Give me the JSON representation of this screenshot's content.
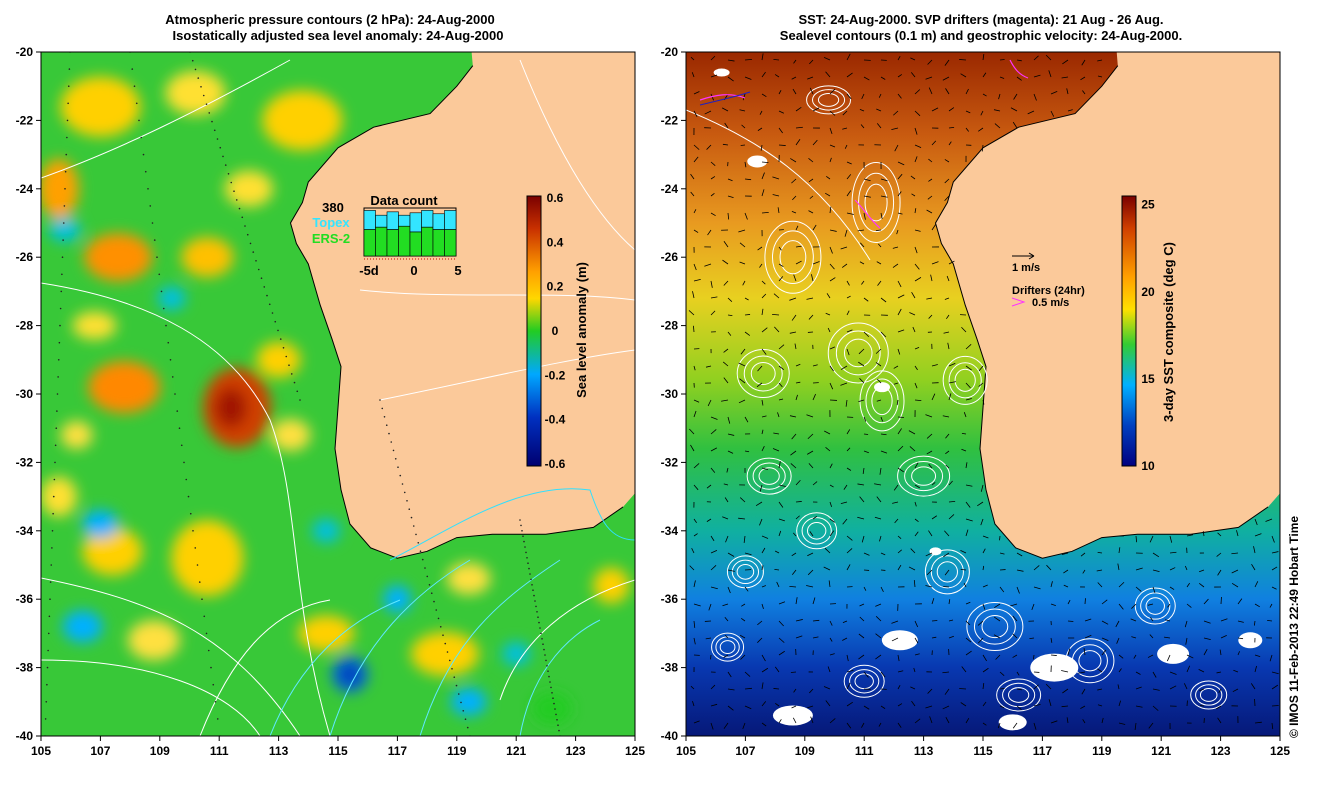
{
  "left_panel": {
    "title_line1": "Atmospheric pressure contours (2 hPa): 24-Aug-2000",
    "title_line2": "Isostatically adjusted sea level anomaly: 24-Aug-2000",
    "colorbar": {
      "label": "Sea level anomaly (m)",
      "range": [
        -0.6,
        0.6
      ],
      "ticks": [
        "0.6",
        "0.4",
        "0.2",
        "0",
        "-0.2",
        "-0.4",
        "-0.6"
      ],
      "colors": [
        "#7a0000",
        "#c83000",
        "#ffa000",
        "#ffd700",
        "#22cc22",
        "#00a8ff",
        "#0030c0",
        "#000070"
      ]
    },
    "data_count": {
      "title": "Data count",
      "value": "380",
      "topex_label": "Topex",
      "ers2_label": "ERS-2",
      "topex_color": "#33e5ff",
      "ers2_color": "#22dd22",
      "xticks": [
        "-5d",
        "0",
        "5"
      ],
      "topex_values": [
        0.95,
        0.85,
        0.92,
        0.85,
        0.9,
        0.95,
        0.88,
        0.95
      ],
      "ers2_values": [
        0.55,
        0.6,
        0.55,
        0.62,
        0.5,
        0.6,
        0.55,
        0.55
      ]
    }
  },
  "right_panel": {
    "title_line1": "SST: 24-Aug-2000. SVP drifters (magenta): 21 Aug - 26 Aug.",
    "title_line2": "Sealevel contours (0.1 m) and geostrophic velocity: 24-Aug-2000.",
    "colorbar": {
      "label": "3-day SST composite (deg C)",
      "range": [
        10,
        25.5
      ],
      "ticks": [
        "25",
        "20",
        "15",
        "10"
      ],
      "colors": [
        "#7a0000",
        "#d04000",
        "#ffa000",
        "#ffe000",
        "#33cc33",
        "#00b0ff",
        "#0040c0",
        "#000080"
      ]
    },
    "velocity_scale_label": "1 m/s",
    "drifters_label": "Drifters (24hr)",
    "drifters_scale_label": "0.5 m/s",
    "drifter_color": "#ff33ff"
  },
  "axes": {
    "xticks": [
      "105",
      "107",
      "109",
      "111",
      "113",
      "115",
      "117",
      "119",
      "121",
      "123",
      "125"
    ],
    "yticks": [
      "-20",
      "-22",
      "-24",
      "-26",
      "-28",
      "-30",
      "-32",
      "-34",
      "-36",
      "-38",
      "-40"
    ]
  },
  "land_color": "#fbc99a",
  "credit": "© IMOS 11-Feb-2013 22:49 Hobart Time"
}
